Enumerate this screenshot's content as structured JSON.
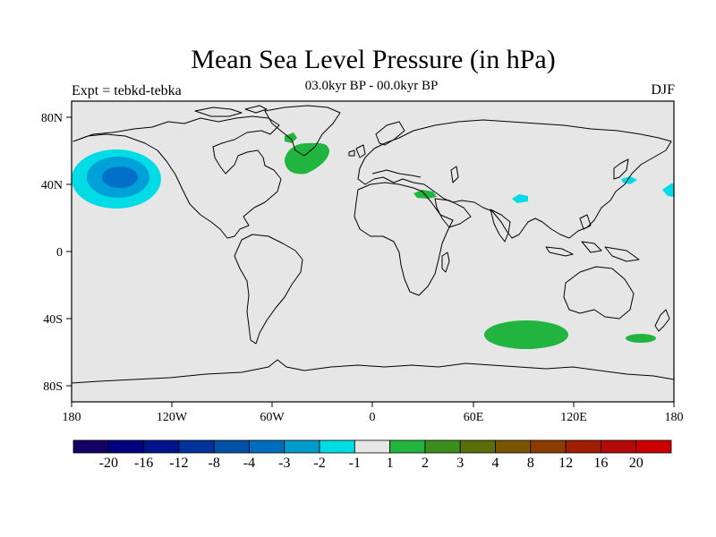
{
  "map": {
    "title": "Mean Sea Level Pressure (in hPa)",
    "subtitle": "03.0kyr BP - 00.0kyr BP",
    "left_label": "Expt = tebkd-tebka",
    "right_label": "DJF",
    "lat_ticks": [
      "80N",
      "40N",
      "0",
      "40S",
      "80S"
    ],
    "lon_ticks": [
      "180",
      "120W",
      "60W",
      "0",
      "60E",
      "120E",
      "180"
    ],
    "colors": {
      "background": "#e6e6e6",
      "coast": "#000000",
      "green": "#21b540",
      "cyan": "#00dce6",
      "mid_blue": "#00a0d8",
      "dark_blue": "#0070c8"
    }
  },
  "colorbar": {
    "labels": [
      "-20",
      "-16",
      "-12",
      "-8",
      "-4",
      "-3",
      "-2",
      "-1",
      "1",
      "2",
      "3",
      "4",
      "8",
      "12",
      "16",
      "20"
    ],
    "colors": [
      "#140064",
      "#000080",
      "#00148c",
      "#00329a",
      "#0050a8",
      "#006ebc",
      "#009ccc",
      "#00dce6",
      "#e6e6e6",
      "#21b540",
      "#3c8c1e",
      "#5a6e0a",
      "#785500",
      "#8c3c00",
      "#a01e00",
      "#b40a0a",
      "#cc0000"
    ]
  }
}
